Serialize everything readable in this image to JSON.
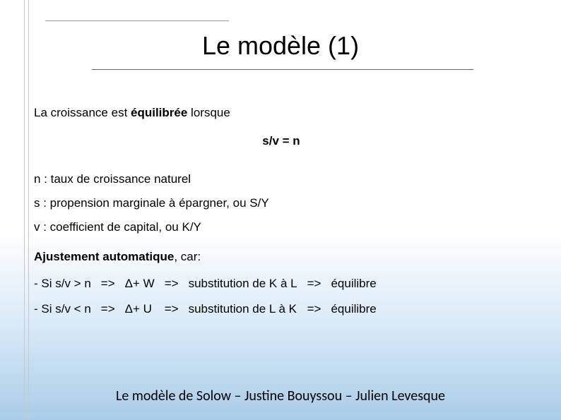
{
  "title": "Le modèle (1)",
  "intro": {
    "pre": "La croissance est ",
    "bold": "équilibrée",
    "post": " lorsque"
  },
  "formula": "s/v = n",
  "defs": {
    "n": "n : taux de croissance naturel",
    "s": "s : propension marginale à épargner, ou S/Y",
    "v": "v : coefficient de capital, ou K/Y"
  },
  "adjust": {
    "bold": "Ajustement automatique",
    "post": ", car:"
  },
  "rows": [
    {
      "cond": "- Si s/v > n",
      "arr1": "=>",
      "delta": "Δ+ W",
      "arr2": "=>",
      "subst": "substitution de K à L",
      "arr3": "=>",
      "eq": "équilibre"
    },
    {
      "cond": "- Si s/v < n",
      "arr1": "=>",
      "delta": "Δ+ U",
      "arr2": "=>",
      "subst": "substitution de L à K",
      "arr3": "=>",
      "eq": "équilibre"
    }
  ],
  "footer": "Le modèle de Solow – Justine Bouyssou – Julien Levesque"
}
